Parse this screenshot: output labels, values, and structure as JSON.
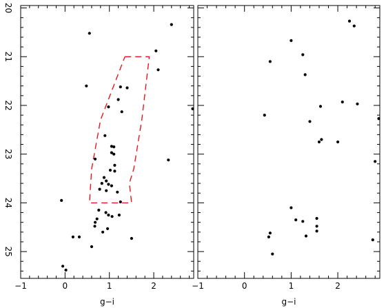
{
  "chart_data": [
    {
      "type": "scatter",
      "xlabel": "g−i",
      "ylabel": "",
      "xlim": [
        -1,
        2.9
      ],
      "ylim": [
        25.55,
        19.95
      ],
      "y_inverted": true,
      "xticks": [
        -1,
        0,
        1,
        2
      ],
      "xtick_labels": [
        "−1",
        "0",
        "1",
        "2"
      ],
      "yticks": [
        20,
        21,
        22,
        23,
        24,
        25
      ],
      "ytick_labels": [
        "20",
        "21",
        "22",
        "23",
        "24",
        "25"
      ],
      "grid": false,
      "points": [
        [
          0.55,
          20.52
        ],
        [
          2.4,
          20.34
        ],
        [
          2.05,
          20.88
        ],
        [
          2.1,
          21.27
        ],
        [
          0.48,
          21.6
        ],
        [
          1.25,
          21.62
        ],
        [
          1.4,
          21.64
        ],
        [
          1.2,
          21.88
        ],
        [
          0.98,
          22.03
        ],
        [
          1.28,
          22.13
        ],
        [
          2.88,
          22.07
        ],
        [
          0.9,
          22.62
        ],
        [
          1.05,
          22.84
        ],
        [
          1.1,
          22.85
        ],
        [
          1.05,
          22.97
        ],
        [
          1.1,
          23.0
        ],
        [
          0.68,
          23.1
        ],
        [
          2.33,
          23.12
        ],
        [
          1.12,
          23.23
        ],
        [
          1.02,
          23.33
        ],
        [
          1.12,
          23.35
        ],
        [
          0.88,
          23.48
        ],
        [
          0.93,
          23.55
        ],
        [
          0.83,
          23.6
        ],
        [
          0.98,
          23.62
        ],
        [
          1.05,
          23.65
        ],
        [
          0.78,
          23.72
        ],
        [
          0.93,
          23.75
        ],
        [
          1.18,
          23.78
        ],
        [
          -0.08,
          23.95
        ],
        [
          1.25,
          23.98
        ],
        [
          0.76,
          24.15
        ],
        [
          0.92,
          24.2
        ],
        [
          0.98,
          24.25
        ],
        [
          1.22,
          24.25
        ],
        [
          1.06,
          24.28
        ],
        [
          0.72,
          24.33
        ],
        [
          0.68,
          24.4
        ],
        [
          0.67,
          24.48
        ],
        [
          0.96,
          24.53
        ],
        [
          0.85,
          24.6
        ],
        [
          0.18,
          24.7
        ],
        [
          0.32,
          24.7
        ],
        [
          1.5,
          24.73
        ],
        [
          0.6,
          24.9
        ],
        [
          -0.05,
          25.3
        ],
        [
          0.02,
          25.38
        ]
      ],
      "selection_box": [
        [
          1.35,
          21.0
        ],
        [
          1.9,
          21.0
        ],
        [
          1.73,
          22.3
        ],
        [
          1.55,
          23.3
        ],
        [
          1.45,
          23.6
        ],
        [
          1.5,
          24.0
        ],
        [
          0.55,
          24.0
        ],
        [
          0.6,
          23.3
        ],
        [
          0.8,
          22.3
        ],
        [
          1.35,
          21.0
        ]
      ]
    },
    {
      "type": "scatter",
      "xlabel": "g−i",
      "ylabel": "",
      "xlim": [
        -1,
        2.9
      ],
      "ylim": [
        25.55,
        19.95
      ],
      "y_inverted": true,
      "xticks": [
        -1,
        0,
        1,
        2
      ],
      "xtick_labels": [
        "−1",
        "0",
        "1",
        "2"
      ],
      "yticks": [
        20,
        21,
        22,
        23,
        24,
        25
      ],
      "grid": false,
      "points": [
        [
          2.25,
          20.27
        ],
        [
          2.35,
          20.37
        ],
        [
          1.0,
          20.67
        ],
        [
          1.25,
          20.96
        ],
        [
          0.55,
          21.1
        ],
        [
          1.3,
          21.37
        ],
        [
          2.1,
          21.93
        ],
        [
          2.42,
          21.97
        ],
        [
          1.63,
          22.02
        ],
        [
          0.43,
          22.2
        ],
        [
          2.9,
          22.27
        ],
        [
          1.4,
          22.33
        ],
        [
          1.65,
          22.7
        ],
        [
          1.6,
          22.75
        ],
        [
          2.0,
          22.75
        ],
        [
          2.8,
          23.15
        ],
        [
          1.0,
          24.1
        ],
        [
          1.55,
          24.32
        ],
        [
          1.1,
          24.35
        ],
        [
          1.25,
          24.38
        ],
        [
          1.55,
          24.48
        ],
        [
          1.55,
          24.58
        ],
        [
          0.55,
          24.62
        ],
        [
          0.52,
          24.7
        ],
        [
          1.32,
          24.68
        ],
        [
          2.75,
          24.76
        ],
        [
          0.6,
          25.05
        ]
      ]
    }
  ]
}
